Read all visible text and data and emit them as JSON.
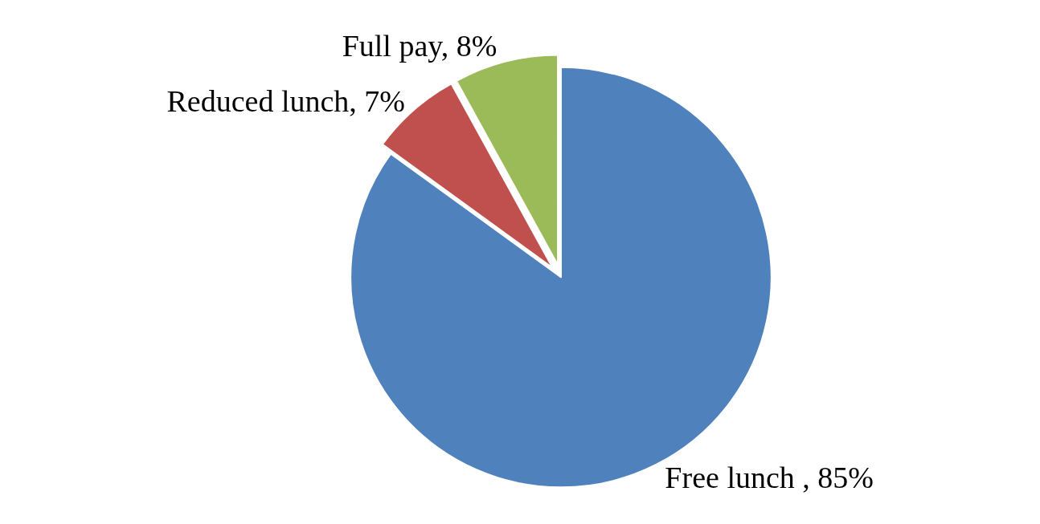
{
  "chart_data": {
    "type": "pie",
    "categories": [
      "Free lunch ",
      "Reduced lunch",
      "Full pay"
    ],
    "values": [
      85,
      7,
      8
    ],
    "colors": [
      "#4f81bd",
      "#c0504d",
      "#9bbb59"
    ],
    "value_labels": [
      "85%",
      "7%",
      "8%"
    ],
    "legend": false
  }
}
